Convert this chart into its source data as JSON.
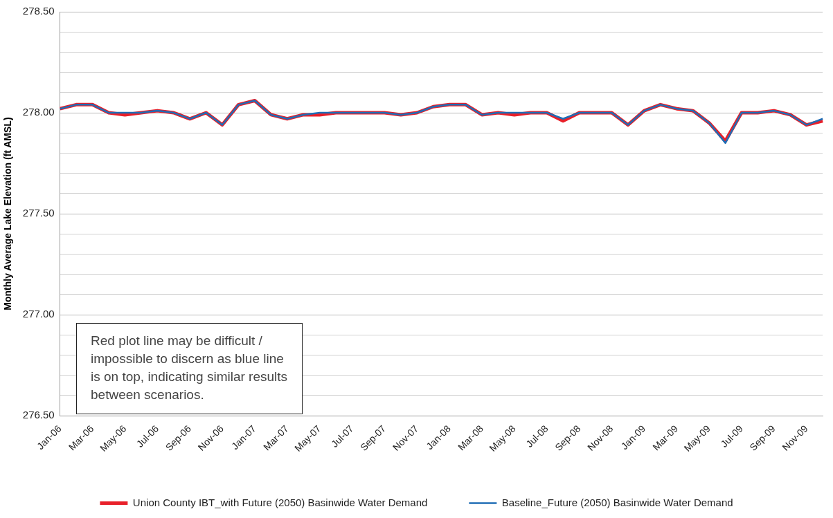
{
  "chart_data": {
    "type": "line",
    "ylabel": "Monthly Average Lake Elevation (ft AMSL)",
    "categories": [
      "Jan-06",
      null,
      "Mar-06",
      null,
      "May-06",
      null,
      "Jul-06",
      null,
      "Sep-06",
      null,
      "Nov-06",
      null,
      "Jan-07",
      null,
      "Mar-07",
      null,
      "May-07",
      null,
      "Jul-07",
      null,
      "Sep-07",
      null,
      "Nov-07",
      null,
      "Jan-08",
      null,
      "Mar-08",
      null,
      "May-08",
      null,
      "Jul-08",
      null,
      "Sep-08",
      null,
      "Nov-08",
      null,
      "Jan-09",
      null,
      "Mar-09",
      null,
      "May-09",
      null,
      "Jul-09",
      null,
      "Sep-09",
      null,
      "Nov-09",
      null
    ],
    "series": [
      {
        "name": "Union County IBT_with Future (2050) Basinwide Water Demand",
        "color": "#e8202a",
        "values": [
          278.02,
          278.04,
          278.04,
          278.0,
          277.99,
          278.0,
          278.01,
          278.0,
          277.97,
          278.0,
          277.94,
          278.04,
          278.06,
          277.99,
          277.97,
          277.99,
          277.99,
          278.0,
          278.0,
          278.0,
          278.0,
          277.99,
          278.0,
          278.03,
          278.04,
          278.04,
          277.99,
          278.0,
          277.99,
          278.0,
          278.0,
          277.96,
          278.0,
          278.0,
          278.0,
          277.94,
          278.01,
          278.04,
          278.02,
          278.01,
          277.95,
          277.86,
          278.0,
          278.0,
          278.01,
          277.99,
          277.94,
          277.96
        ]
      },
      {
        "name": "Baseline_Future (2050) Basinwide Water Demand",
        "color": "#1f6db5",
        "values": [
          278.02,
          278.04,
          278.04,
          278.0,
          278.0,
          278.0,
          278.01,
          278.0,
          277.97,
          278.0,
          277.94,
          278.04,
          278.06,
          277.99,
          277.97,
          277.99,
          278.0,
          278.0,
          278.0,
          278.0,
          278.0,
          277.99,
          278.0,
          278.03,
          278.04,
          278.04,
          277.99,
          278.0,
          278.0,
          278.0,
          278.0,
          277.97,
          278.0,
          278.0,
          278.0,
          277.94,
          278.01,
          278.04,
          278.02,
          278.01,
          277.95,
          277.85,
          278.0,
          278.0,
          278.01,
          277.99,
          277.94,
          277.97
        ]
      }
    ],
    "ylim": [
      276.5,
      278.5
    ],
    "yticks": [
      {
        "value": 276.5,
        "label": "276.50"
      },
      {
        "value": 276.6,
        "label": null
      },
      {
        "value": 276.7,
        "label": null
      },
      {
        "value": 276.8,
        "label": null
      },
      {
        "value": 276.9,
        "label": null
      },
      {
        "value": 277,
        "label": "277.00"
      },
      {
        "value": 277.1,
        "label": null
      },
      {
        "value": 277.2,
        "label": null
      },
      {
        "value": 277.3,
        "label": null
      },
      {
        "value": 277.4,
        "label": null
      },
      {
        "value": 277.5,
        "label": "277.50"
      },
      {
        "value": 277.6,
        "label": null
      },
      {
        "value": 277.7,
        "label": null
      },
      {
        "value": 277.8,
        "label": null
      },
      {
        "value": 277.9,
        "label": null
      },
      {
        "value": 278,
        "label": "278.00"
      },
      {
        "value": 278.1,
        "label": null
      },
      {
        "value": 278.2,
        "label": null
      },
      {
        "value": 278.3,
        "label": null
      },
      {
        "value": 278.4,
        "label": null
      },
      {
        "value": 278.5,
        "label": "278.50"
      }
    ],
    "grid": "y",
    "legend": "bottom",
    "marker": "none",
    "line_style": "solid",
    "annotations": [
      "Red plot line may be difficult / impossible to discern as blue line is on top, indicating similar results between scenarios."
    ]
  }
}
